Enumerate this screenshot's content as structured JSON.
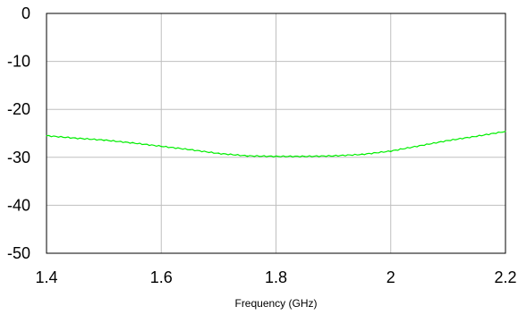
{
  "chart_data": {
    "type": "line",
    "title": "",
    "xlabel": "Frequency (GHz)",
    "ylabel": "",
    "xlim": [
      1.4,
      2.2
    ],
    "ylim": [
      -50,
      0
    ],
    "xticks": [
      1.4,
      1.6,
      1.8,
      2.0,
      2.2
    ],
    "xtick_labels": [
      "1.4",
      "1.6",
      "1.8",
      "2",
      "2.2"
    ],
    "yticks": [
      0,
      -10,
      -20,
      -30,
      -40,
      -50
    ],
    "ytick_labels": [
      "0",
      "-10",
      "-20",
      "-30",
      "-40",
      "-50"
    ],
    "grid": true,
    "series": [
      {
        "color": "#00ee00",
        "x": [
          1.4,
          1.45,
          1.5,
          1.55,
          1.6,
          1.65,
          1.7,
          1.75,
          1.8,
          1.85,
          1.9,
          1.95,
          2.0,
          2.05,
          2.1,
          2.15,
          2.2
        ],
        "values": [
          -25.5,
          -26.0,
          -26.4,
          -27.0,
          -27.7,
          -28.4,
          -29.2,
          -29.7,
          -29.8,
          -29.8,
          -29.7,
          -29.4,
          -28.7,
          -27.6,
          -26.5,
          -25.6,
          -24.6
        ]
      }
    ]
  }
}
